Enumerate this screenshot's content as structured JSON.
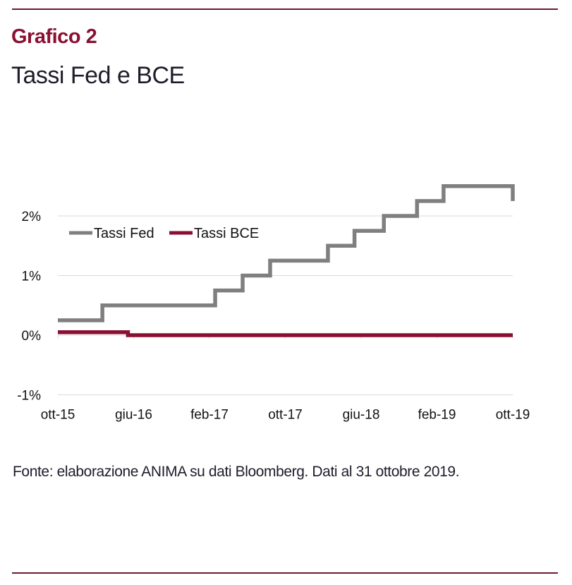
{
  "header": {
    "kicker": "Grafico 2",
    "title": "Tassi Fed e BCE"
  },
  "footer": {
    "source": "Fonte: elaborazione ANIMA su dati Bloomberg. Dati al 31 ottobre 2019."
  },
  "colors": {
    "brand": "#8a0f32",
    "fed": "#7f7f7f",
    "bce": "#8a0f32",
    "grid": "#d9d9d9"
  },
  "chart_data": {
    "type": "line",
    "step": true,
    "title": "Tassi Fed e BCE",
    "xlabel": "",
    "ylabel": "",
    "x_range": [
      "ott-15",
      "ott-19"
    ],
    "x_ticks": [
      "ott-15",
      "giu-16",
      "feb-17",
      "ott-17",
      "giu-18",
      "feb-19",
      "ott-19"
    ],
    "y_ticks": [
      "-1%",
      "0%",
      "1%",
      "2%"
    ],
    "y_tick_values": [
      -1,
      0,
      1,
      2
    ],
    "ylim": [
      -1,
      2.5
    ],
    "grid": true,
    "legend": "top-left",
    "series": [
      {
        "name": "Tassi Fed",
        "color_key": "fed",
        "points": [
          {
            "month_index": 0,
            "value": 0.25
          },
          {
            "month_index": 4.7,
            "value": 0.5
          },
          {
            "month_index": 16.6,
            "value": 0.75
          },
          {
            "month_index": 19.5,
            "value": 1.0
          },
          {
            "month_index": 22.4,
            "value": 1.25
          },
          {
            "month_index": 28.5,
            "value": 1.5
          },
          {
            "month_index": 31.3,
            "value": 1.75
          },
          {
            "month_index": 34.4,
            "value": 2.0
          },
          {
            "month_index": 37.9,
            "value": 2.25
          },
          {
            "month_index": 40.7,
            "value": 2.5
          },
          {
            "month_index": 48,
            "value": 2.25
          }
        ]
      },
      {
        "name": "Tassi BCE",
        "color_key": "bce",
        "points": [
          {
            "month_index": 0,
            "value": 0.05
          },
          {
            "month_index": 7.4,
            "value": 0.0
          },
          {
            "month_index": 48,
            "value": 0.0
          }
        ]
      }
    ]
  }
}
